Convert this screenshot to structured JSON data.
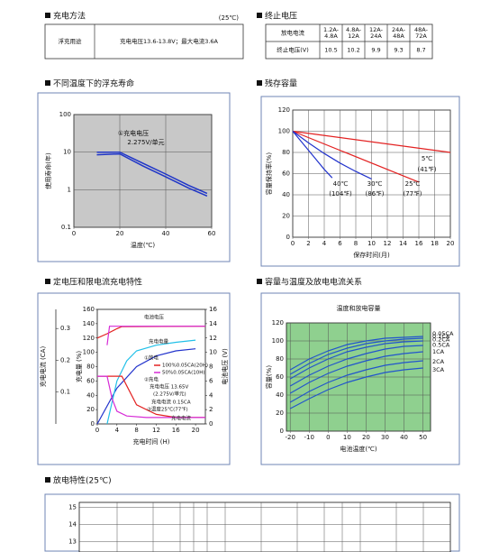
{
  "charging": {
    "title": "充电方法",
    "note": "(25℃)",
    "rows": [
      [
        "浮充用途",
        "充电电压13.6-13.8V；最大电流3.6A"
      ]
    ]
  },
  "termination": {
    "title": "终止电压",
    "rows": [
      [
        "放电电流",
        "1.2A-4.8A",
        "4.8A-12A",
        "12A-24A",
        "24A-48A",
        "48A-72A"
      ],
      [
        "终止电压(V)",
        "10.5",
        "10.2",
        "9.9",
        "9.3",
        "8.7"
      ]
    ]
  },
  "chart_data": [
    {
      "type": "line",
      "title": "不同温度下的浮充寿命",
      "xlabel": "温度(℃)",
      "ylabel": "使用寿命(年)",
      "xlim": [
        0,
        60
      ],
      "xticks": [
        0,
        20,
        40,
        60
      ],
      "ylim": [
        0.1,
        100
      ],
      "yticks": [
        0.1,
        1,
        10,
        100
      ],
      "log_y": true,
      "grid": true,
      "background": "#c8c8c8",
      "x": [
        10,
        20,
        30,
        40,
        50,
        58
      ],
      "series": [
        {
          "color": "#1f35c8",
          "values": [
            10,
            10,
            5.1,
            2.6,
            1.3,
            0.8
          ]
        },
        {
          "color": "#1f35c8",
          "values": [
            8.5,
            9,
            4.3,
            2.2,
            1.1,
            0.68
          ]
        }
      ],
      "annotations": [
        "①充电电压",
        "2.275V/单元"
      ]
    },
    {
      "type": "line",
      "title": "残存容量",
      "xlabel": "保存时间(月)",
      "ylabel": "容量保持率(%)",
      "xlim": [
        0,
        20
      ],
      "xticks": [
        0,
        2,
        4,
        6,
        8,
        10,
        12,
        14,
        16,
        18,
        20
      ],
      "ylim": [
        0,
        120
      ],
      "yticks": [
        0,
        20,
        40,
        60,
        80,
        100,
        120
      ],
      "grid": true,
      "background": "#ffffff",
      "series": [
        {
          "name": "5℃",
          "color": "#e32222",
          "x": [
            0,
            20
          ],
          "values": [
            100,
            80
          ]
        },
        {
          "name": "25℃",
          "color": "#e32222",
          "x": [
            0,
            16
          ],
          "values": [
            100,
            52
          ]
        },
        {
          "name": "30℃",
          "color": "#2233cc",
          "x": [
            0,
            2,
            4,
            6,
            8,
            10
          ],
          "values": [
            100,
            89,
            79,
            70,
            62,
            55
          ]
        },
        {
          "name": "40℃",
          "color": "#2233cc",
          "x": [
            0,
            1,
            2,
            3,
            4,
            5
          ],
          "values": [
            100,
            91,
            82,
            73,
            64,
            56
          ]
        }
      ],
      "annotations": [
        "(41℉)",
        "(77℉)",
        "(86℉)",
        "(104℉)"
      ]
    },
    {
      "type": "line",
      "title": "定电压和限电流充电特性",
      "xlabel": "充电时间 (H)",
      "ylabel": "充电量 (%)",
      "y2label": "电池电压 (V)",
      "y3label": "充电电流 (CA)",
      "xlim": [
        0,
        22
      ],
      "xticks": [
        0,
        4,
        8,
        12,
        16,
        20
      ],
      "ylim": [
        0,
        160
      ],
      "yticks": [
        0,
        20,
        40,
        60,
        80,
        100,
        120,
        140,
        160
      ],
      "y2lim": [
        0,
        16
      ],
      "y2ticks": [
        0,
        2,
        4,
        6,
        8,
        10,
        12,
        14,
        16
      ],
      "y3lim": [
        0,
        0.36
      ],
      "y3ticks": [
        0.1,
        0.2,
        0.3
      ],
      "grid": false,
      "background": "#ffffff",
      "series": [
        {
          "color": "#e32222",
          "axis": "y2",
          "x": [
            0,
            2,
            4,
            5,
            22
          ],
          "values": [
            12,
            12.6,
            13.3,
            13.6,
            13.65
          ]
        },
        {
          "color": "#d62bd6",
          "axis": "y2",
          "x": [
            2,
            2.5,
            22
          ],
          "values": [
            11,
            13.65,
            13.65
          ]
        },
        {
          "color": "#2233cc",
          "x": [
            0,
            4,
            8,
            12,
            16,
            20
          ],
          "values": [
            0,
            50,
            80,
            95,
            102,
            105
          ]
        },
        {
          "color": "#22c0e8",
          "x": [
            2,
            4,
            6,
            8,
            12,
            16,
            20
          ],
          "values": [
            0,
            60,
            88,
            102,
            110,
            114,
            117
          ]
        },
        {
          "color": "#e32222",
          "axis": "y3",
          "x": [
            0,
            5,
            6,
            8,
            12,
            16,
            22
          ],
          "values": [
            0.15,
            0.15,
            0.12,
            0.06,
            0.03,
            0.02,
            0.02
          ]
        },
        {
          "color": "#d62bd6",
          "axis": "y3",
          "x": [
            0,
            2,
            3,
            4,
            6,
            10,
            22
          ],
          "values": [
            0.15,
            0.15,
            0.08,
            0.04,
            0.025,
            0.02,
            0.02
          ]
        }
      ],
      "annotations": [
        "电池电压",
        "充电电量",
        "充电电流",
        "①放电",
        "100%0.05CA(20H)",
        "50%0.05CA(10H)",
        "②充电",
        "充电电压 13.65V",
        "(2.275V/单元)",
        "充电电流 0.15CA",
        "③温度25℃(77℉)"
      ]
    },
    {
      "type": "line",
      "title": "容量与温度及放电电流关系",
      "subtitle": "温度和放电容量",
      "xlabel": "电池温度(℃)",
      "ylabel": "容量(%)",
      "xlim": [
        -22,
        54
      ],
      "xticks": [
        -20,
        -10,
        0,
        10,
        20,
        30,
        40,
        50
      ],
      "ylim": [
        0,
        120
      ],
      "yticks": [
        0,
        20,
        40,
        60,
        80,
        100,
        120
      ],
      "grid": true,
      "background": "#8fd08f",
      "x": [
        -20,
        -10,
        0,
        10,
        20,
        30,
        40,
        50
      ],
      "series": [
        {
          "name": "0.05CA",
          "color": "#2255cc",
          "values": [
            68,
            80,
            89,
            96,
            100,
            103,
            104,
            105
          ]
        },
        {
          "name": "0.1CA",
          "color": "#2255cc",
          "values": [
            63,
            75,
            85,
            92,
            97,
            100,
            102,
            103
          ]
        },
        {
          "name": "0.2CA",
          "color": "#2255cc",
          "values": [
            58,
            70,
            80,
            88,
            93,
            97,
            99,
            100
          ]
        },
        {
          "name": "0.5CA",
          "color": "#2255cc",
          "values": [
            50,
            62,
            72,
            80,
            86,
            91,
            94,
            95
          ]
        },
        {
          "name": "1CA",
          "color": "#2255cc",
          "values": [
            42,
            54,
            64,
            72,
            78,
            83,
            86,
            88
          ]
        },
        {
          "name": "2CA",
          "color": "#2255cc",
          "values": [
            32,
            44,
            54,
            62,
            68,
            73,
            76,
            78
          ]
        },
        {
          "name": "3CA",
          "color": "#2255cc",
          "values": [
            25,
            36,
            46,
            54,
            60,
            65,
            68,
            70
          ]
        }
      ]
    },
    {
      "type": "line",
      "title": "放电特性(25℃)",
      "ylim": [
        12.4,
        15.3
      ],
      "yticks": [
        13,
        14,
        15
      ],
      "grid": true,
      "background": "#ffffff",
      "series": []
    }
  ]
}
